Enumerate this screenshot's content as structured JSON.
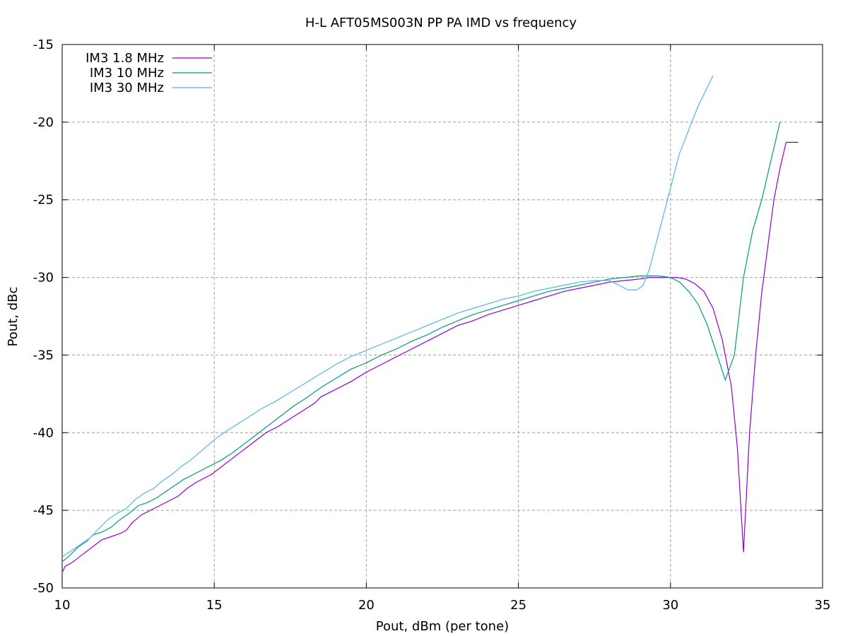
{
  "chart_data": {
    "type": "line",
    "title": "H-L AFT05MS003N PP PA IMD vs frequency",
    "xlabel": "Pout, dBm (per tone)",
    "ylabel": "Pout, dBc",
    "xlim": [
      10,
      35
    ],
    "ylim": [
      -50,
      -15
    ],
    "xticks": [
      10,
      15,
      20,
      25,
      30,
      35
    ],
    "yticks": [
      -50,
      -45,
      -40,
      -35,
      -30,
      -25,
      -20,
      -15
    ],
    "grid": true,
    "legend_position": "top-left",
    "series": [
      {
        "name": "IM3 1.8 MHz",
        "color": "#9400d3",
        "x": [
          10.0,
          10.1,
          10.3,
          10.5,
          10.7,
          10.9,
          11.1,
          11.3,
          11.6,
          11.9,
          12.1,
          12.3,
          12.6,
          12.9,
          13.2,
          13.5,
          13.8,
          14.1,
          14.4,
          14.7,
          14.9,
          15.1,
          15.5,
          15.9,
          16.3,
          16.7,
          17.1,
          17.5,
          17.9,
          18.3,
          18.5,
          19.0,
          19.5,
          20.0,
          20.5,
          21.0,
          21.5,
          22.0,
          22.5,
          23.0,
          23.5,
          24.0,
          24.5,
          25.0,
          25.5,
          26.0,
          26.5,
          27.0,
          27.5,
          28.0,
          28.5,
          29.0,
          29.3,
          29.6,
          29.9,
          30.2,
          30.5,
          30.8,
          31.1,
          31.4,
          31.7,
          32.0,
          32.2,
          32.4,
          32.6,
          32.8,
          33.0,
          33.2,
          33.4,
          33.6,
          33.8,
          34.0,
          34.2
        ],
        "values": [
          -49.0,
          -48.6,
          -48.4,
          -48.1,
          -47.8,
          -47.5,
          -47.2,
          -46.9,
          -46.7,
          -46.5,
          -46.3,
          -45.8,
          -45.3,
          -45.0,
          -44.7,
          -44.4,
          -44.1,
          -43.6,
          -43.2,
          -42.9,
          -42.7,
          -42.4,
          -41.8,
          -41.2,
          -40.6,
          -40.0,
          -39.6,
          -39.1,
          -38.6,
          -38.1,
          -37.7,
          -37.2,
          -36.7,
          -36.1,
          -35.6,
          -35.1,
          -34.6,
          -34.1,
          -33.6,
          -33.1,
          -32.8,
          -32.4,
          -32.1,
          -31.8,
          -31.5,
          -31.2,
          -30.9,
          -30.7,
          -30.5,
          -30.3,
          -30.2,
          -30.1,
          -30.0,
          -30.0,
          -30.0,
          -30.0,
          -30.1,
          -30.4,
          -30.9,
          -32.0,
          -34.0,
          -37.0,
          -41.0,
          -47.7,
          -40.0,
          -35.0,
          -31.0,
          -28.0,
          -25.0,
          -23.0,
          -21.3,
          -21.3,
          -21.3
        ]
      },
      {
        "name": "IM3 10 MHz",
        "color": "#009e73",
        "x": [
          10.0,
          10.2,
          10.5,
          10.8,
          11.0,
          11.3,
          11.6,
          11.9,
          12.2,
          12.5,
          12.8,
          13.1,
          13.4,
          13.7,
          14.0,
          14.3,
          14.6,
          14.9,
          15.2,
          15.6,
          16.0,
          16.4,
          16.8,
          17.2,
          17.6,
          18.0,
          18.5,
          19.0,
          19.5,
          20.0,
          20.5,
          21.0,
          21.5,
          22.0,
          22.5,
          23.0,
          23.5,
          24.0,
          24.5,
          25.0,
          25.5,
          26.0,
          26.5,
          27.0,
          27.5,
          28.0,
          28.5,
          29.0,
          29.3,
          29.6,
          30.0,
          30.3,
          30.6,
          30.9,
          31.2,
          31.5,
          31.8,
          32.1,
          32.4,
          32.7,
          33.0,
          33.3,
          33.6
        ],
        "values": [
          -48.3,
          -48.0,
          -47.4,
          -47.0,
          -46.6,
          -46.4,
          -46.1,
          -45.6,
          -45.2,
          -44.7,
          -44.5,
          -44.2,
          -43.8,
          -43.4,
          -43.0,
          -42.7,
          -42.4,
          -42.1,
          -41.8,
          -41.3,
          -40.7,
          -40.1,
          -39.5,
          -38.9,
          -38.3,
          -37.8,
          -37.1,
          -36.5,
          -35.9,
          -35.5,
          -35.0,
          -34.6,
          -34.1,
          -33.7,
          -33.2,
          -32.8,
          -32.4,
          -32.1,
          -31.8,
          -31.5,
          -31.2,
          -30.9,
          -30.7,
          -30.5,
          -30.3,
          -30.1,
          -30.0,
          -29.9,
          -29.9,
          -29.9,
          -30.0,
          -30.3,
          -30.9,
          -31.7,
          -33.0,
          -34.8,
          -36.6,
          -35.0,
          -30.0,
          -27.0,
          -25.0,
          -22.5,
          -20.0
        ]
      },
      {
        "name": "IM3 30 MHz",
        "color": "#56b4e9",
        "x": [
          10.0,
          10.3,
          10.6,
          10.9,
          11.2,
          11.5,
          11.8,
          12.1,
          12.4,
          12.7,
          13.0,
          13.3,
          13.6,
          13.9,
          14.2,
          14.5,
          14.8,
          15.1,
          15.4,
          15.8,
          16.2,
          16.6,
          17.0,
          17.5,
          18.0,
          18.5,
          19.0,
          19.5,
          20.0,
          20.5,
          21.0,
          21.5,
          22.0,
          22.5,
          23.0,
          23.5,
          24.0,
          24.5,
          25.0,
          25.5,
          26.0,
          26.5,
          27.0,
          27.5,
          28.0,
          28.3,
          28.6,
          28.9,
          29.1,
          29.3,
          29.5,
          29.7,
          29.9,
          30.1,
          30.3,
          30.6,
          30.9,
          31.2,
          31.4
        ],
        "values": [
          -48.0,
          -47.6,
          -47.2,
          -46.8,
          -46.2,
          -45.6,
          -45.2,
          -44.9,
          -44.3,
          -43.9,
          -43.6,
          -43.1,
          -42.7,
          -42.2,
          -41.8,
          -41.3,
          -40.8,
          -40.3,
          -39.9,
          -39.4,
          -38.9,
          -38.4,
          -38.0,
          -37.4,
          -36.8,
          -36.2,
          -35.6,
          -35.1,
          -34.7,
          -34.3,
          -33.9,
          -33.5,
          -33.1,
          -32.7,
          -32.3,
          -32.0,
          -31.7,
          -31.4,
          -31.2,
          -30.9,
          -30.7,
          -30.5,
          -30.3,
          -30.2,
          -30.2,
          -30.5,
          -30.8,
          -30.8,
          -30.5,
          -29.5,
          -28.0,
          -26.5,
          -25.0,
          -23.5,
          -22.0,
          -20.5,
          -19.0,
          -17.8,
          -17.0
        ]
      }
    ]
  }
}
